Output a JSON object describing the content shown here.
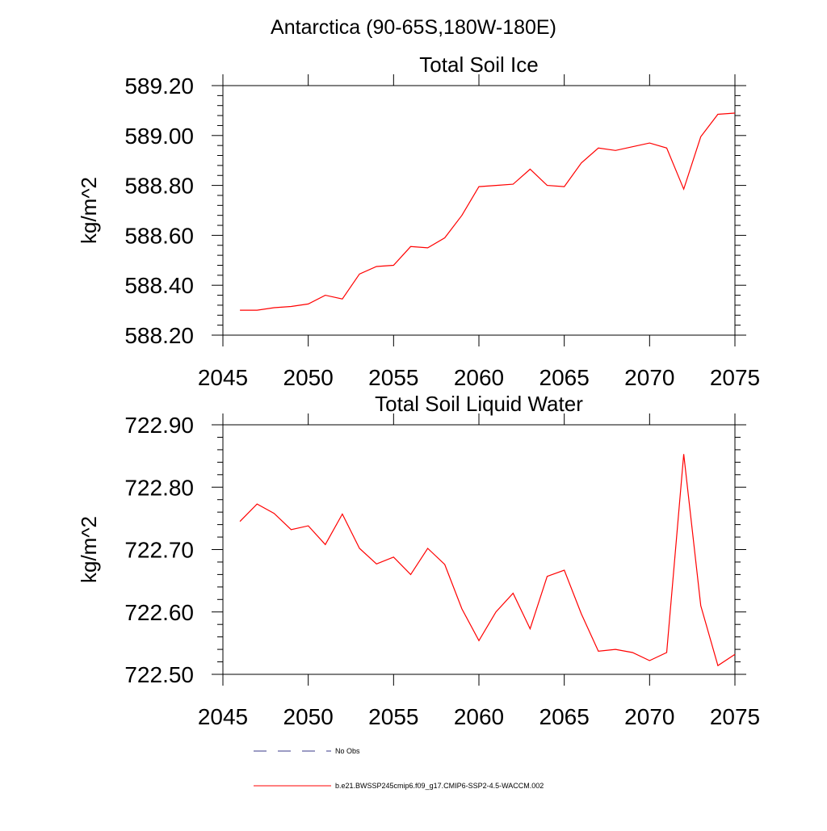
{
  "page_title": "Antarctica (90-65S,180W-180E)",
  "colors": {
    "model_line": "#ff0000",
    "obs_line": "#3a3a8a",
    "axis": "#000000"
  },
  "legend": {
    "entries": [
      {
        "label": "No Obs",
        "style": "dashed",
        "color": "#3a3a8a"
      },
      {
        "label": "b.e21.BWSSP245cmip6.f09_g17.CMIP6-SSP2-4.5-WACCM.002",
        "style": "solid",
        "color": "#ff0000"
      }
    ]
  },
  "chart_data": [
    {
      "type": "line",
      "title": "Total Soil Ice",
      "xlabel": "",
      "ylabel": "kg/m^2",
      "xlim": [
        2045,
        2075
      ],
      "ylim": [
        588.2,
        589.2
      ],
      "xticks": [
        2045,
        2050,
        2055,
        2060,
        2065,
        2070,
        2075
      ],
      "xtick_labels": [
        "2045",
        "2050",
        "2055",
        "2060",
        "2065",
        "2070",
        "2075"
      ],
      "yticks": [
        588.2,
        588.4,
        588.6,
        588.8,
        589.0,
        589.2
      ],
      "ytick_labels": [
        "588.20",
        "588.40",
        "588.60",
        "588.80",
        "589.00",
        "589.20"
      ],
      "y_minor_step": 0.04,
      "x": [
        2046,
        2047,
        2048,
        2049,
        2050,
        2051,
        2052,
        2053,
        2054,
        2055,
        2056,
        2057,
        2058,
        2059,
        2060,
        2061,
        2062,
        2063,
        2064,
        2065,
        2066,
        2067,
        2068,
        2069,
        2070,
        2071,
        2072,
        2073,
        2074,
        2075
      ],
      "series": [
        {
          "name": "b.e21.BWSSP245cmip6.f09_g17.CMIP6-SSP2-4.5-WACCM.002",
          "color": "#ff0000",
          "values": [
            588.3,
            588.3,
            588.31,
            588.315,
            588.325,
            588.36,
            588.345,
            588.445,
            588.475,
            588.48,
            588.555,
            588.55,
            588.59,
            588.68,
            588.795,
            588.8,
            588.805,
            588.865,
            588.8,
            588.795,
            588.89,
            588.95,
            588.94,
            588.955,
            588.97,
            588.95,
            588.785,
            588.995,
            589.085,
            589.09
          ]
        }
      ]
    },
    {
      "type": "line",
      "title": "Total Soil Liquid Water",
      "xlabel": "",
      "ylabel": "kg/m^2",
      "xlim": [
        2045,
        2075
      ],
      "ylim": [
        722.5,
        722.9
      ],
      "xticks": [
        2045,
        2050,
        2055,
        2060,
        2065,
        2070,
        2075
      ],
      "xtick_labels": [
        "2045",
        "2050",
        "2055",
        "2060",
        "2065",
        "2070",
        "2075"
      ],
      "yticks": [
        722.5,
        722.6,
        722.7,
        722.8,
        722.9
      ],
      "ytick_labels": [
        "722.50",
        "722.60",
        "722.70",
        "722.80",
        "722.90"
      ],
      "y_minor_step": 0.02,
      "x": [
        2046,
        2047,
        2048,
        2049,
        2050,
        2051,
        2052,
        2053,
        2054,
        2055,
        2056,
        2057,
        2058,
        2059,
        2060,
        2061,
        2062,
        2063,
        2064,
        2065,
        2066,
        2067,
        2068,
        2069,
        2070,
        2071,
        2072,
        2073,
        2074,
        2075
      ],
      "series": [
        {
          "name": "b.e21.BWSSP245cmip6.f09_g17.CMIP6-SSP2-4.5-WACCM.002",
          "color": "#ff0000",
          "values": [
            722.745,
            722.773,
            722.758,
            722.732,
            722.738,
            722.708,
            722.757,
            722.702,
            722.677,
            722.688,
            722.66,
            722.702,
            722.676,
            722.605,
            722.554,
            722.6,
            722.63,
            722.573,
            722.657,
            722.667,
            722.597,
            722.537,
            722.54,
            722.535,
            722.522,
            722.535,
            722.853,
            722.61,
            722.514,
            722.532
          ]
        }
      ]
    }
  ]
}
